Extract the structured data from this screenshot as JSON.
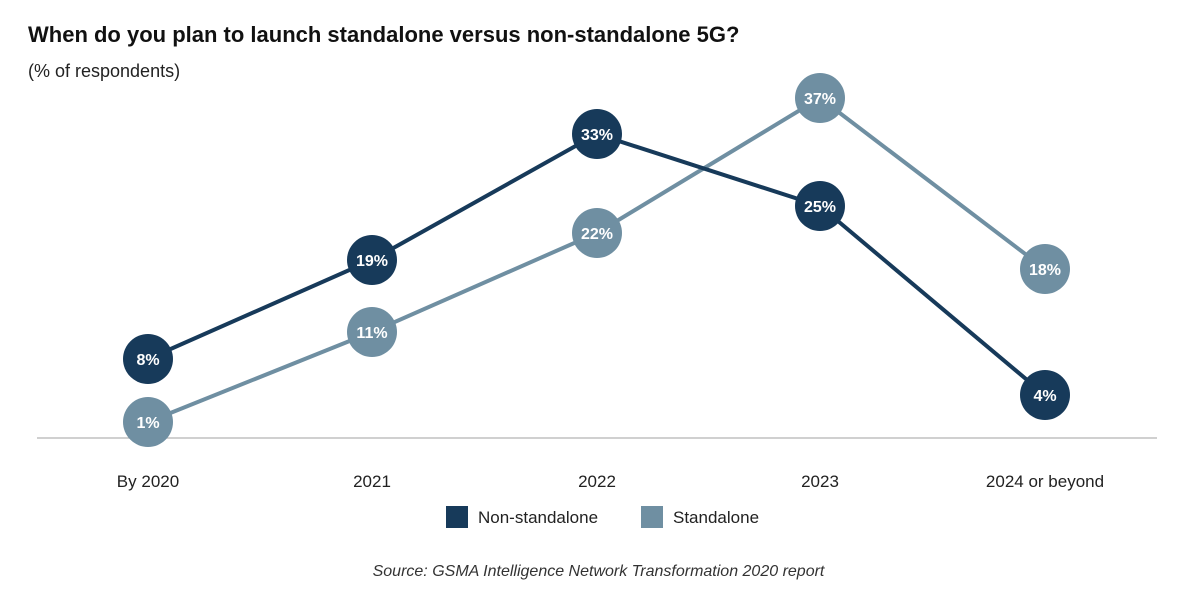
{
  "title": "When do you plan to launch standalone versus non-standalone 5G?",
  "subtitle": "(% of respondents)",
  "source": "Source: GSMA Intelligence Network Transformation 2020 report",
  "chart_data": {
    "type": "line",
    "title": "When do you plan to launch standalone versus non-standalone 5G?",
    "subtitle": "(% of respondents)",
    "categories": [
      "By 2020",
      "2021",
      "2022",
      "2023",
      "2024 or beyond"
    ],
    "series": [
      {
        "name": "Non-standalone",
        "color": "#173a5a",
        "values": [
          8,
          19,
          33,
          25,
          4
        ],
        "labels": [
          "8%",
          "19%",
          "33%",
          "25%",
          "4%"
        ]
      },
      {
        "name": "Standalone",
        "color": "#6f8fa2",
        "values": [
          1,
          11,
          22,
          37,
          18
        ],
        "labels": [
          "1%",
          "11%",
          "22%",
          "37%",
          "18%"
        ]
      }
    ],
    "ylim": [
      0,
      40
    ],
    "grid": false,
    "legend_position": "bottom-center",
    "data_labels": "inside-markers"
  }
}
